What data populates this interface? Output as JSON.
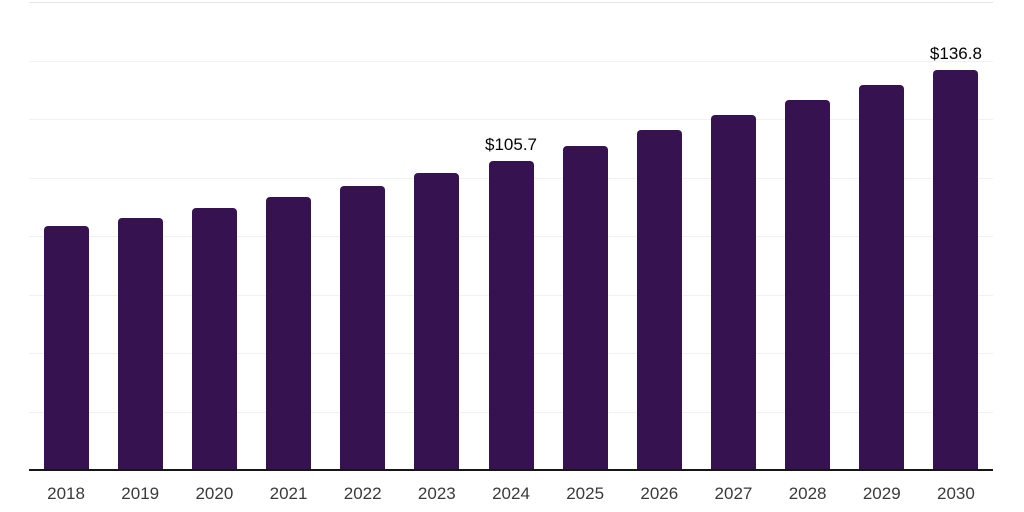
{
  "chart_data": {
    "type": "bar",
    "title": "",
    "xlabel": "",
    "ylabel": "",
    "categories": [
      "2018",
      "2019",
      "2020",
      "2021",
      "2022",
      "2023",
      "2024",
      "2025",
      "2026",
      "2027",
      "2028",
      "2029",
      "2030"
    ],
    "values": [
      83.3,
      86.2,
      89.6,
      93.2,
      97.0,
      101.6,
      105.7,
      110.9,
      116.1,
      121.2,
      126.4,
      131.6,
      136.8
    ],
    "bar_labels": [
      "",
      "",
      "",
      "",
      "",
      "",
      "$105.7",
      "",
      "",
      "",
      "",
      "",
      "$136.8"
    ],
    "ylim": [
      0,
      160
    ],
    "gridline_step": 20,
    "grid": "horizontal",
    "legend_position": "none",
    "y_axis_labels_shown": false,
    "colors": {
      "bar": "#361250",
      "axis_line": "#161616",
      "gridline": "#f1f1f1",
      "gridline_top": "#e6e6e6",
      "tick_label": "#3a3a3a",
      "data_label": "#050505",
      "background": "#ffffff"
    }
  }
}
